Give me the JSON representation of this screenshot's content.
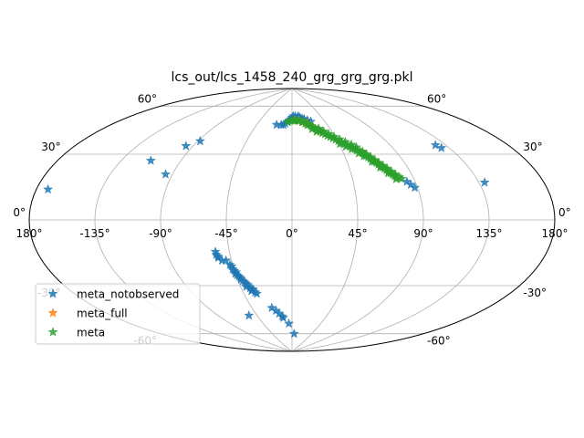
{
  "chart_data": {
    "type": "scatter",
    "projection": "aitoff",
    "title": "lcs_out/lcs_1458_240_grg_grg_grg.pkl",
    "xlabel": "",
    "ylabel": "",
    "grid": true,
    "legend_position": "lower-left",
    "xticks": [
      {
        "value": -180,
        "label": "180°"
      },
      {
        "value": -135,
        "label": "-135°"
      },
      {
        "value": -90,
        "label": "-90°"
      },
      {
        "value": -45,
        "label": "-45°"
      },
      {
        "value": 0,
        "label": "0°"
      },
      {
        "value": 45,
        "label": "45°"
      },
      {
        "value": 90,
        "label": "90°"
      },
      {
        "value": 135,
        "label": "135°"
      },
      {
        "value": 180,
        "label": "180°"
      }
    ],
    "yticks": [
      {
        "value": 60,
        "label": "60°"
      },
      {
        "value": 30,
        "label": "30°"
      },
      {
        "value": 0,
        "label": "0°"
      },
      {
        "value": -30,
        "label": "-30°"
      },
      {
        "value": -60,
        "label": "-60°"
      }
    ],
    "series": [
      {
        "name": "meta_notobserved",
        "color": "#1f77b4",
        "marker": "star",
        "points": [
          [
            -172,
            14
          ],
          [
            -113,
            35
          ],
          [
            -96,
            46
          ],
          [
            -88,
            50
          ],
          [
            -95,
            28
          ],
          [
            -20,
            65
          ],
          [
            -14,
            65
          ],
          [
            -11,
            65
          ],
          [
            -9,
            66
          ],
          [
            -6,
            67
          ],
          [
            -4,
            68
          ],
          [
            -2,
            69
          ],
          [
            0,
            70
          ],
          [
            2,
            71
          ],
          [
            5,
            71
          ],
          [
            8,
            70
          ],
          [
            10,
            71
          ],
          [
            12,
            70
          ],
          [
            15,
            69
          ],
          [
            18,
            69
          ],
          [
            22,
            68
          ],
          [
            26,
            67
          ],
          [
            84,
            24
          ],
          [
            86,
            22
          ],
          [
            88,
            20
          ],
          [
            127,
            43
          ],
          [
            129,
            41
          ],
          [
            139,
            20
          ],
          [
            -55,
            -21
          ],
          [
            -55,
            -23
          ],
          [
            -54,
            -24
          ],
          [
            -54,
            -25
          ],
          [
            -52,
            -27
          ],
          [
            -49,
            -27
          ],
          [
            -47,
            -30
          ],
          [
            -46,
            -31
          ],
          [
            -46,
            -33
          ],
          [
            -45,
            -34
          ],
          [
            -45,
            -36
          ],
          [
            -44,
            -37
          ],
          [
            -43,
            -38
          ],
          [
            -42,
            -40
          ],
          [
            -41,
            -41
          ],
          [
            -40,
            -42
          ],
          [
            -39,
            -43
          ],
          [
            -38,
            -44
          ],
          [
            -37,
            -46
          ],
          [
            -36,
            -47
          ],
          [
            -35,
            -47
          ],
          [
            -34,
            -49
          ],
          [
            -33,
            -50
          ],
          [
            -40,
            -45
          ],
          [
            -37,
            -48
          ],
          [
            -42,
            -39
          ],
          [
            -44,
            -35
          ],
          [
            -23,
            -60
          ],
          [
            -19,
            -62
          ],
          [
            -16,
            -64
          ],
          [
            -13,
            -66
          ],
          [
            -12,
            -67
          ],
          [
            -5,
            -71
          ],
          [
            5,
            -78
          ],
          [
            -55,
            -64
          ]
        ]
      },
      {
        "name": "meta_full",
        "color": "#ff7f0e",
        "marker": "star",
        "points": [
          [
            4,
            68
          ],
          [
            10,
            68
          ],
          [
            16,
            67
          ],
          [
            20,
            66
          ],
          [
            26,
            63
          ],
          [
            30,
            61
          ],
          [
            34,
            59
          ]
        ]
      },
      {
        "name": "meta",
        "color": "#2ca02c",
        "marker": "star",
        "points": [
          [
            -6,
            67
          ],
          [
            -2,
            68
          ],
          [
            2,
            68
          ],
          [
            5,
            68
          ],
          [
            8,
            68
          ],
          [
            11,
            68
          ],
          [
            14,
            67
          ],
          [
            16,
            67
          ],
          [
            18,
            66
          ],
          [
            20,
            65
          ],
          [
            22,
            65
          ],
          [
            24,
            64
          ],
          [
            26,
            63
          ],
          [
            28,
            62
          ],
          [
            30,
            61
          ],
          [
            32,
            60
          ],
          [
            34,
            59
          ],
          [
            36,
            58
          ],
          [
            38,
            57
          ],
          [
            40,
            56
          ],
          [
            42,
            55
          ],
          [
            44,
            54
          ],
          [
            46,
            53
          ],
          [
            48,
            52
          ],
          [
            50,
            51
          ],
          [
            52,
            50
          ],
          [
            54,
            49
          ],
          [
            55,
            48
          ],
          [
            57,
            47
          ],
          [
            58,
            46
          ],
          [
            60,
            45
          ],
          [
            61,
            44
          ],
          [
            62,
            43
          ],
          [
            63,
            42
          ],
          [
            64,
            41
          ],
          [
            65,
            40
          ],
          [
            66,
            39
          ],
          [
            67,
            38
          ],
          [
            68,
            37
          ],
          [
            69,
            36
          ],
          [
            70,
            35
          ],
          [
            71,
            34
          ],
          [
            72,
            33
          ],
          [
            73,
            32
          ],
          [
            74,
            31
          ],
          [
            75,
            30
          ],
          [
            76,
            29
          ],
          [
            77,
            28
          ],
          [
            78,
            27
          ],
          [
            24,
            62
          ],
          [
            28,
            60
          ],
          [
            32,
            62
          ],
          [
            36,
            60
          ],
          [
            40,
            58
          ],
          [
            44,
            56
          ],
          [
            48,
            54
          ],
          [
            52,
            52
          ],
          [
            56,
            50
          ],
          [
            59,
            48
          ],
          [
            62,
            45
          ],
          [
            64,
            43
          ],
          [
            66,
            41
          ],
          [
            68,
            39
          ],
          [
            70,
            37
          ],
          [
            72,
            35
          ],
          [
            74,
            33
          ],
          [
            76,
            31
          ],
          [
            78,
            29
          ],
          [
            80,
            27
          ],
          [
            81,
            26
          ],
          [
            46,
            51
          ],
          [
            50,
            49
          ],
          [
            54,
            47
          ],
          [
            58,
            44
          ],
          [
            61,
            42
          ],
          [
            65,
            38
          ],
          [
            69,
            34
          ],
          [
            73,
            30
          ],
          [
            77,
            26
          ]
        ]
      }
    ]
  }
}
